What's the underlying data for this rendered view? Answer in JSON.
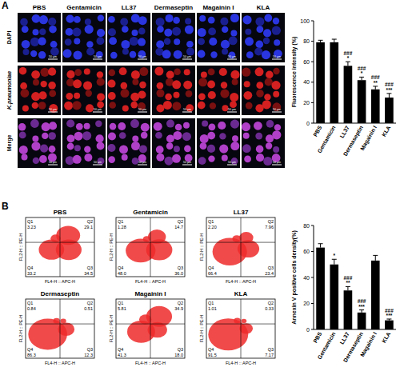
{
  "panel_labels": [
    "A",
    "B"
  ],
  "microscopy": {
    "columns": [
      "PBS",
      "Gentamicin",
      "LL37",
      "Dermaseptin",
      "Magainin I",
      "KLA"
    ],
    "rows": [
      "DAPI",
      "K.pneumoniae",
      "Merge"
    ],
    "scale_bar": "50 μm"
  },
  "flow": {
    "x_label": "FL4-H :: APC-H",
    "y_label": "FL2-H :: PE-H",
    "plots": [
      {
        "title": "PBS",
        "quadrants": [
          {
            "name": "Q1",
            "value": 3.23
          },
          {
            "name": "Q2",
            "value": 29.1
          },
          {
            "name": "Q3",
            "value": 34.5
          },
          {
            "name": "Q4",
            "value": 33.2
          }
        ]
      },
      {
        "title": "Gentamicin",
        "quadrants": [
          {
            "name": "Q1",
            "value": 1.28
          },
          {
            "name": "Q2",
            "value": 14.7
          },
          {
            "name": "Q3",
            "value": 36,
            "label": "36.0"
          },
          {
            "name": "Q4",
            "value": 48,
            "label": "48.0"
          }
        ]
      },
      {
        "title": "LL37",
        "quadrants": [
          {
            "name": "Q1",
            "value": 2.2,
            "label": "2.20"
          },
          {
            "name": "Q2",
            "value": 7.96
          },
          {
            "name": "Q3",
            "value": 23.4
          },
          {
            "name": "Q4",
            "value": 66.4
          }
        ]
      },
      {
        "title": "Dermaseptin",
        "quadrants": [
          {
            "name": "Q1",
            "value": 0.84
          },
          {
            "name": "Q2",
            "value": 0.51
          },
          {
            "name": "Q3",
            "value": 12.3
          },
          {
            "name": "Q4",
            "value": 86.3
          }
        ]
      },
      {
        "title": "Magainin I",
        "quadrants": [
          {
            "name": "Q1",
            "value": 5.81
          },
          {
            "name": "Q2",
            "value": 34.9
          },
          {
            "name": "Q3",
            "value": 18,
            "label": "18.0"
          },
          {
            "name": "Q4",
            "value": 41.3
          }
        ]
      },
      {
        "title": "KLA",
        "quadrants": [
          {
            "name": "Q1",
            "value": 1.01
          },
          {
            "name": "Q2",
            "value": 0.33
          },
          {
            "name": "Q3",
            "value": 7.17
          },
          {
            "name": "Q4",
            "value": 91.5
          }
        ]
      }
    ]
  },
  "chart_data": [
    {
      "type": "bar",
      "y_label": "Fluorescence intensity (%)",
      "categories": [
        "PBS",
        "Gentamicin",
        "LL37",
        "Dermaseptin",
        "Magainin I",
        "KLA"
      ],
      "values": [
        79,
        79,
        56,
        42,
        33,
        25
      ],
      "errors": [
        2,
        3,
        4,
        3,
        3,
        4
      ],
      "annotations": [
        [],
        [],
        [
          "###",
          "*"
        ],
        [
          "###",
          "*"
        ],
        [
          "###",
          "**"
        ],
        [
          "###",
          "***"
        ]
      ],
      "color": "#000000",
      "ylim": [
        0,
        100
      ],
      "yticks": [
        0,
        20,
        40,
        60,
        80,
        100
      ]
    },
    {
      "type": "bar",
      "y_label": "Annexin V positive cells density(%)",
      "categories": [
        "PBS",
        "Gentamicin",
        "LL37",
        "Dermaseptin",
        "Magainin I",
        "KLA"
      ],
      "values": [
        63,
        50,
        30,
        13,
        53,
        7
      ],
      "errors": [
        3,
        4,
        3,
        2,
        4,
        1
      ],
      "annotations": [
        [],
        [
          "*"
        ],
        [
          "###",
          "**"
        ],
        [
          "###",
          "***"
        ],
        [],
        [
          "###",
          "***"
        ]
      ],
      "color": "#000000",
      "ylim": [
        0,
        80
      ],
      "yticks": [
        0,
        20,
        40,
        60,
        80
      ]
    }
  ]
}
